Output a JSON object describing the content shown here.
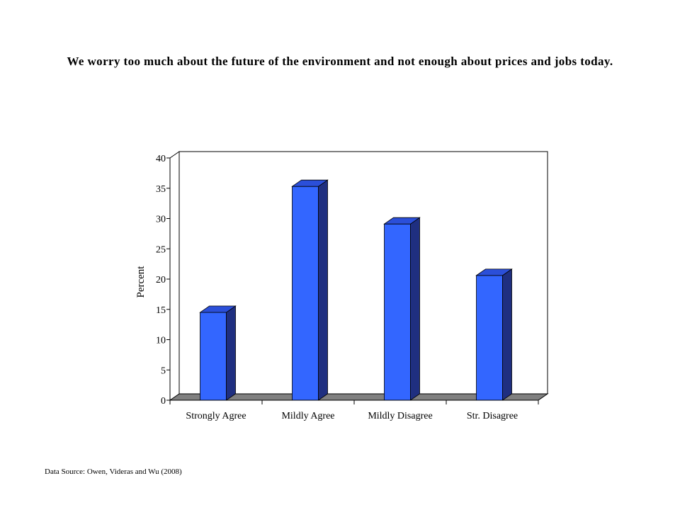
{
  "slide": {
    "title": "We worry too much about the future of the environment and not enough about prices and jobs today.",
    "source": "Data Source: Owen, Videras and Wu (2008)"
  },
  "chart_data": {
    "type": "bar",
    "style": "3d-column",
    "categories": [
      "Strongly Agree",
      "Mildly Agree",
      "Mildly Disagree",
      "Str. Disagree"
    ],
    "values": [
      14.5,
      35.3,
      29.1,
      20.6
    ],
    "ylabel": "Percent",
    "xlabel": "",
    "ylim": [
      0,
      40
    ],
    "yticks": [
      0,
      5,
      10,
      15,
      20,
      25,
      30,
      35,
      40
    ],
    "grid": false,
    "legend": "none",
    "colors": {
      "bar_front": "#3366FF",
      "bar_side": "#1F2F80",
      "bar_top": "#2B4FD9",
      "floor": "#808080",
      "frame": "#000000"
    }
  }
}
